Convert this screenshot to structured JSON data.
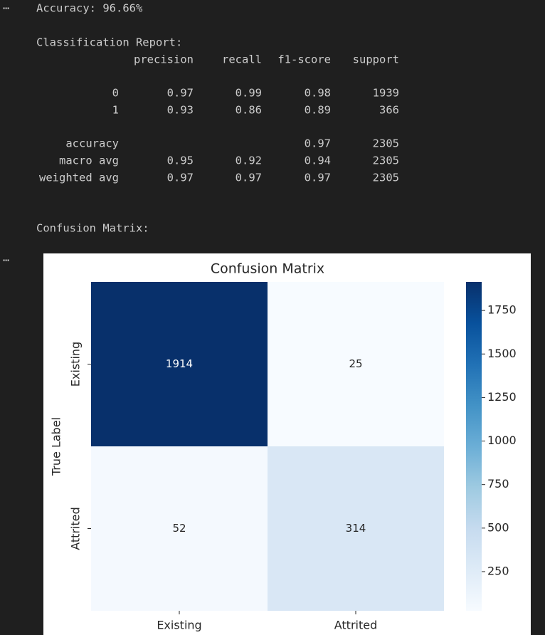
{
  "prompt_marks": [
    "⋯",
    "⋯"
  ],
  "output": {
    "accuracy_line": "Accuracy: 96.66%",
    "report_title": "Classification Report:",
    "report": {
      "header": [
        "precision",
        "recall",
        "f1-score",
        "support"
      ],
      "rows": [
        [
          "0",
          0.97,
          0.99,
          0.98,
          1939
        ],
        [
          "1",
          0.93,
          0.86,
          0.89,
          366
        ],
        [
          "accuracy",
          null,
          null,
          0.97,
          2305
        ],
        [
          "macro avg",
          0.95,
          0.92,
          0.94,
          2305
        ],
        [
          "weighted avg",
          0.97,
          0.97,
          0.97,
          2305
        ]
      ]
    },
    "matrix_title": "Confusion Matrix:"
  },
  "chart_data": {
    "type": "heatmap",
    "title": "Confusion Matrix",
    "x_categories": [
      "Existing",
      "Attrited"
    ],
    "y_categories": [
      "Existing",
      "Attrited"
    ],
    "ylabel": "True Label",
    "values": [
      [
        1914,
        25
      ],
      [
        52,
        314
      ]
    ],
    "colorbar_lim": [
      25,
      1914
    ],
    "colorbar_ticks": [
      250,
      500,
      750,
      1000,
      1250,
      1500,
      1750
    ],
    "colormap": [
      "#f7fbff",
      "#deebf7",
      "#c6dbef",
      "#9ecae1",
      "#6baed6",
      "#4292c6",
      "#2171b5",
      "#08519c",
      "#08306b"
    ]
  }
}
